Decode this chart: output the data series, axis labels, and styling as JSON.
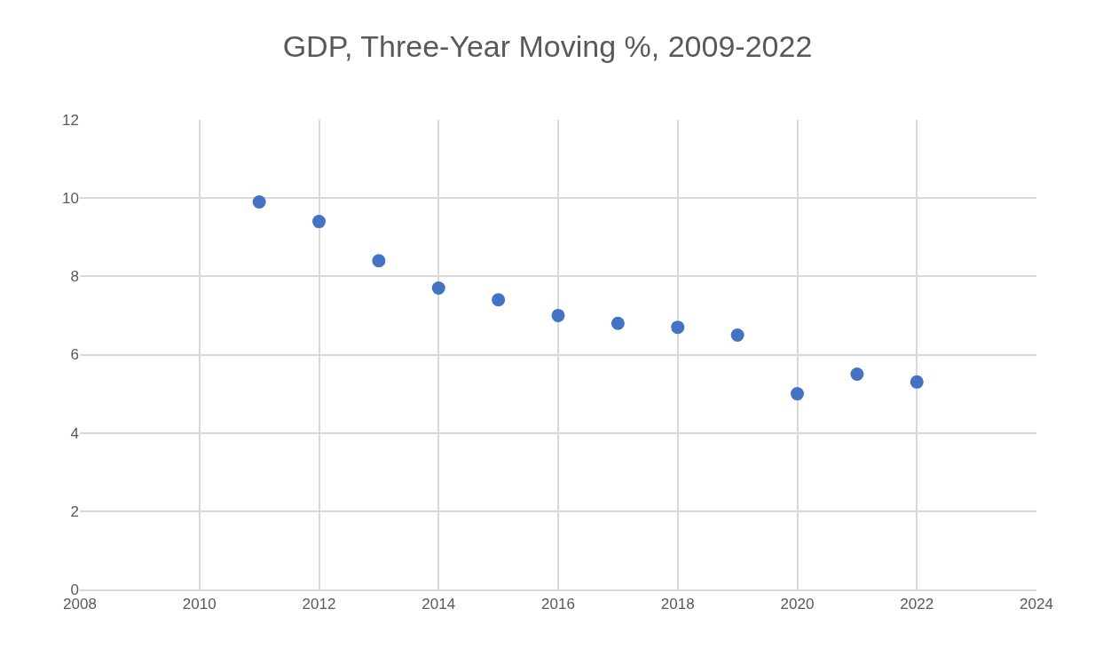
{
  "chart_data": {
    "type": "scatter",
    "title": "GDP, Three-Year Moving %, 2009-2022",
    "x": [
      2011,
      2012,
      2013,
      2014,
      2015,
      2016,
      2017,
      2018,
      2019,
      2020,
      2021,
      2022
    ],
    "series": [
      {
        "color": "#4472c4",
        "values": [
          9.9,
          9.4,
          8.4,
          7.7,
          7.4,
          7.0,
          6.8,
          6.7,
          6.5,
          5.0,
          5.5,
          5.3
        ]
      }
    ],
    "xlim": [
      2008,
      2024
    ],
    "xticks": [
      2008,
      2010,
      2012,
      2014,
      2016,
      2018,
      2020,
      2022,
      2024
    ],
    "ylim": [
      0,
      12
    ],
    "yticks": [
      0,
      2,
      4,
      6,
      8,
      10,
      12
    ],
    "grid": true,
    "marker": "circle"
  }
}
